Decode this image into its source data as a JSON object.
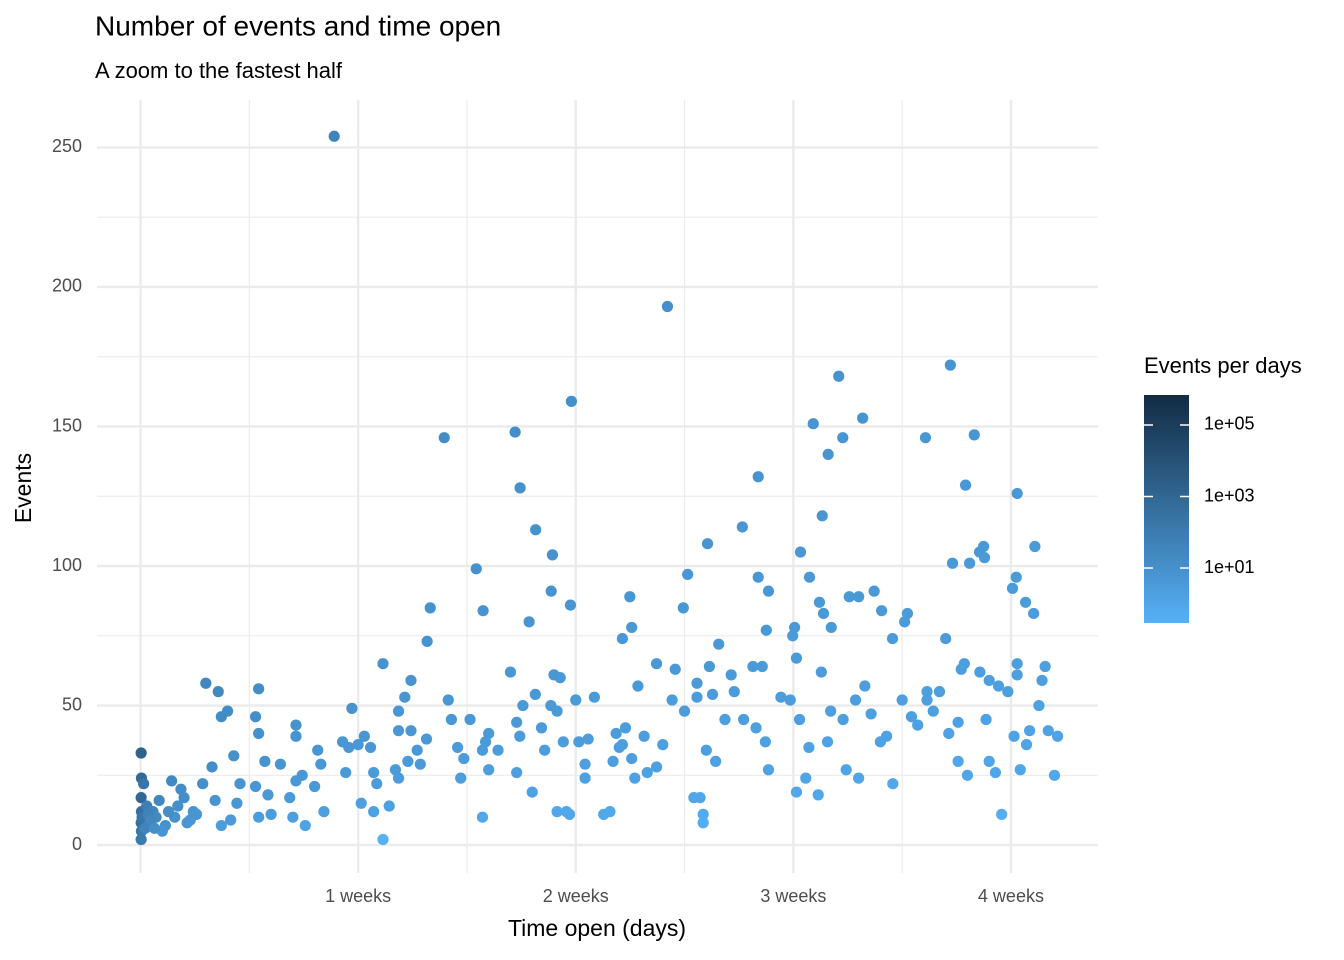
{
  "chart_data": {
    "type": "scatter",
    "title": "Number of events and time open",
    "subtitle": "A zoom to the fastest half",
    "x_label": "Time open (days)",
    "y_label": "Events",
    "xlim": [
      -1.4,
      30.8
    ],
    "ylim": [
      -10,
      267
    ],
    "xticks": [
      {
        "value": 0,
        "label": null
      },
      {
        "value": 7,
        "label": "1 weeks"
      },
      {
        "value": 14,
        "label": "2 weeks"
      },
      {
        "value": 21,
        "label": "3 weeks"
      },
      {
        "value": 28,
        "label": "4 weeks"
      }
    ],
    "x_minor_ticks": [
      3.5,
      10.5,
      17.5,
      24.5
    ],
    "yticks": [
      0,
      50,
      100,
      150,
      200,
      250
    ],
    "y_minor_ticks": [
      25,
      75,
      125,
      175,
      225
    ],
    "grid": true,
    "color_scale": {
      "title": "Events per days",
      "low": "#56B1F7",
      "high": "#132B43",
      "lim": [
        0.29,
        690000
      ],
      "log": true,
      "ticks": [
        {
          "value": 10,
          "label": "1e+01"
        },
        {
          "value": 1000,
          "label": "1e+03"
        },
        {
          "value": 100000,
          "label": "1e+05"
        }
      ]
    },
    "x": [
      6.23,
      16.95,
      13.86,
      9.77,
      12.05,
      12.21,
      12.71,
      13.25,
      13.83,
      13.21,
      12.5,
      10.8,
      11.02,
      9.32,
      9.22,
      18.24,
      17.6,
      17.46,
      15.74,
      19.36,
      19.87,
      19.87,
      20.2,
      20.13,
      21.23,
      21.52,
      21.64,
      22.12,
      22.46,
      22.59,
      23.23,
      21.93,
      21.84,
      21.97,
      22.22,
      22.8,
      23.6,
      23.84,
      24.19,
      24.58,
      24.67,
      25.25,
      26.05,
      26.54,
      26.82,
      26.12,
      26.67,
      26.99,
      27.12,
      27.15,
      28.2,
      28.17,
      28.05,
      28.77,
      28.47,
      28.73,
      21.04,
      20.98,
      0.02,
      0.03,
      0.1,
      0.02,
      0.03,
      0.02,
      0.03,
      0.02,
      0.05,
      0.2,
      0.3,
      0.4,
      0.5,
      0.6,
      0.8,
      1,
      1.1,
      1.2,
      1.3,
      0.9,
      1.5,
      1.6,
      1.7,
      0.7,
      0.15,
      0.25,
      0.35,
      0.45,
      1.4,
      1.8,
      2.1,
      2.5,
      2.6,
      2.8,
      3.0,
      2.3,
      2.0,
      2.4,
      2.6,
      2.9,
      3.1,
      3.2,
      3.7,
      3.8,
      3.8,
      3.7,
      3.8,
      4.0,
      4.1,
      4.2,
      4.5,
      4.8,
      4.9,
      5.0,
      5.0,
      5.0,
      5.2,
      5.3,
      5.6,
      5.7,
      5.8,
      5.9,
      6.5,
      6.6,
      6.8,
      6.7,
      7.0,
      7.2,
      7.1,
      7.4,
      7.5,
      7.5,
      7.6,
      7.8,
      7.8,
      8.0,
      8.2,
      8.3,
      8.3,
      8.5,
      8.7,
      8.7,
      8.3,
      8.6,
      8.9,
      9.0,
      9.2,
      9.9,
      10.0,
      10.2,
      10.3,
      10.6,
      10.4,
      11.0,
      11.2,
      11.1,
      11.2,
      11.0,
      11.5,
      11.9,
      12.1,
      12.1,
      12.2,
      12.3,
      12.6,
      12.7,
      12.9,
      13.0,
      13.2,
      13.4,
      13.5,
      13.3,
      13.6,
      13.7,
      13.8,
      14.1,
      14.0,
      14.3,
      14.3,
      14.4,
      14.6,
      14.9,
      15.1,
      15.2,
      15.4,
      15.3,
      15.6,
      15.5,
      15.8,
      15.9,
      16.0,
      16.2,
      16.3,
      16.6,
      16.8,
      17.1,
      17.5,
      17.8,
      17.9,
      18.0,
      18.2,
      18.3,
      18.5,
      18.8,
      19.0,
      19.1,
      19.4,
      19.8,
      20.1,
      20.0,
      20.2,
      20.6,
      20.9,
      21.1,
      21.2,
      21.1,
      21.4,
      21.5,
      21.8,
      21.9,
      22.2,
      22.1,
      22.6,
      22.7,
      23.0,
      23.1,
      23.3,
      23.5,
      23.8,
      24.0,
      24.2,
      24.5,
      24.8,
      25.0,
      25.3,
      25.5,
      25.7,
      26.0,
      26.3,
      26.3,
      26.5,
      26.6,
      27.0,
      27.2,
      27.3,
      27.5,
      27.6,
      27.9,
      28.1,
      28.3,
      28.6,
      28.5,
      28.9,
      29.0,
      29.2,
      29.5,
      29.4,
      27.7,
      18.1,
      18.1,
      13.4,
      23.1,
      15.8,
      15.5,
      17.2,
      18.6,
      18.4,
      16.6,
      17.9,
      19.7,
      25.3,
      26.4,
      25.9,
      27.3,
      28.2,
      29.1,
      28.2
    ],
    "y": [
      254,
      193,
      159,
      146,
      148,
      128,
      113,
      104,
      86,
      91,
      80,
      99,
      84,
      85,
      73,
      108,
      97,
      85,
      89,
      114,
      132,
      96,
      91,
      77,
      105,
      96,
      151,
      140,
      168,
      146,
      153,
      118,
      87,
      83,
      78,
      89,
      91,
      84,
      74,
      80,
      83,
      146,
      172,
      129,
      147,
      101,
      101,
      105,
      107,
      103,
      126,
      96,
      92,
      107,
      87,
      83,
      78,
      75,
      33,
      24,
      22,
      17,
      12,
      8,
      5,
      2,
      10,
      14,
      8,
      12,
      10,
      16,
      7,
      23,
      10,
      14,
      20,
      12,
      8,
      9,
      12,
      5,
      6,
      11,
      9,
      6,
      17,
      11,
      58,
      55,
      46,
      48,
      32,
      28,
      22,
      16,
      7,
      9,
      15,
      22,
      46,
      56,
      40,
      21,
      10,
      30,
      18,
      11,
      29,
      17,
      10,
      23,
      43,
      39,
      25,
      7,
      21,
      34,
      29,
      12,
      37,
      26,
      49,
      35,
      36,
      39,
      15,
      35,
      26,
      12,
      22,
      2,
      65,
      14,
      27,
      48,
      41,
      53,
      59,
      41,
      24,
      30,
      34,
      29,
      38,
      52,
      45,
      35,
      24,
      45,
      31,
      34,
      40,
      37,
      27,
      10,
      34,
      62,
      44,
      26,
      39,
      50,
      19,
      54,
      42,
      34,
      50,
      48,
      60,
      61,
      37,
      12,
      11,
      37,
      52,
      29,
      24,
      38,
      53,
      11,
      12,
      30,
      35,
      40,
      42,
      36,
      31,
      24,
      57,
      39,
      26,
      28,
      36,
      52,
      48,
      17,
      58,
      17,
      34,
      64,
      30,
      45,
      61,
      55,
      45,
      42,
      37,
      64,
      27,
      53,
      52,
      67,
      45,
      19,
      24,
      35,
      18,
      62,
      48,
      37,
      45,
      27,
      52,
      24,
      57,
      47,
      37,
      39,
      22,
      52,
      46,
      43,
      55,
      48,
      55,
      40,
      44,
      30,
      65,
      25,
      62,
      45,
      30,
      26,
      57,
      55,
      39,
      27,
      41,
      36,
      50,
      59,
      41,
      39,
      25,
      11,
      11,
      8,
      12,
      89,
      78,
      74,
      63,
      72,
      54,
      65,
      53,
      64,
      52,
      63,
      74,
      59,
      65,
      64,
      61
    ]
  }
}
